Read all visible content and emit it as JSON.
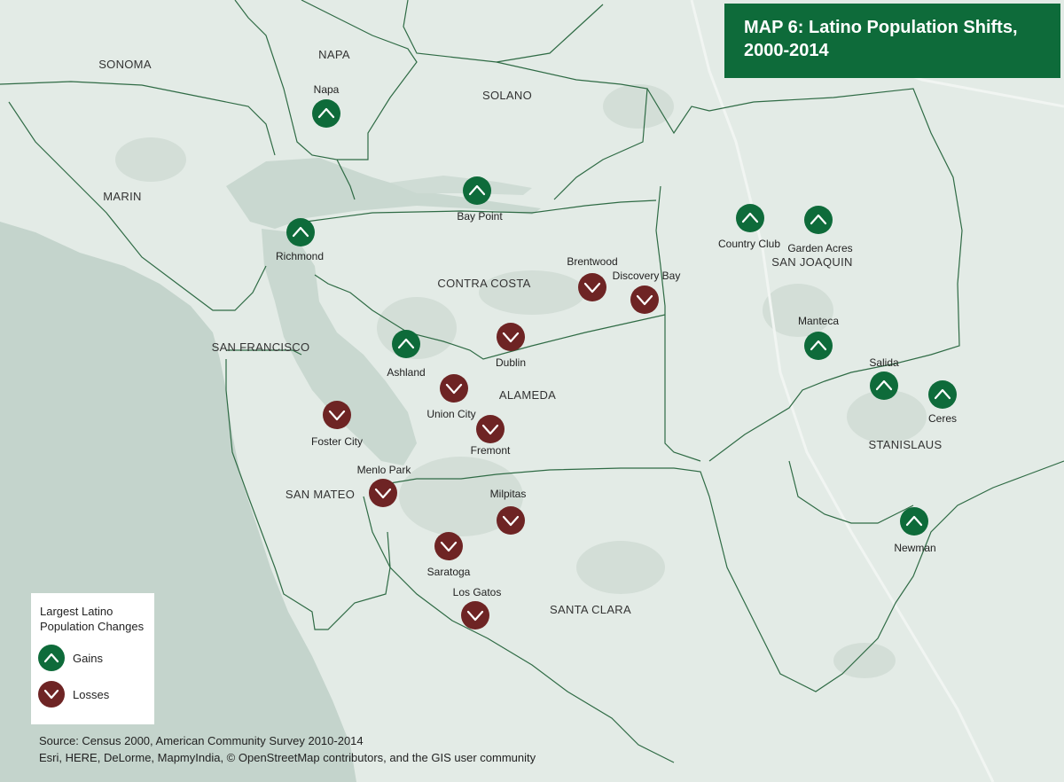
{
  "title": {
    "line1": "MAP 6: Latino Population Shifts,",
    "line2": "2000-2014"
  },
  "colors": {
    "gain": "#0e6b3a",
    "loss": "#6e2424",
    "water": "#c4d4cc",
    "land": "#e3ebe6",
    "boundary": "#2f6b45"
  },
  "counties": [
    {
      "name": "SONOMA"
    },
    {
      "name": "NAPA"
    },
    {
      "name": "SOLANO"
    },
    {
      "name": "MARIN"
    },
    {
      "name": "CONTRA COSTA"
    },
    {
      "name": "SAN JOAQUIN"
    },
    {
      "name": "SAN FRANCISCO"
    },
    {
      "name": "ALAMEDA"
    },
    {
      "name": "STANISLAUS"
    },
    {
      "name": "SAN MATEO"
    },
    {
      "name": "SANTA CLARA"
    }
  ],
  "places": [
    {
      "name": "Napa",
      "change": "gain"
    },
    {
      "name": "Bay Point",
      "change": "gain"
    },
    {
      "name": "Richmond",
      "change": "gain"
    },
    {
      "name": "Country Club",
      "change": "gain"
    },
    {
      "name": "Garden Acres",
      "change": "gain"
    },
    {
      "name": "Brentwood",
      "change": "loss"
    },
    {
      "name": "Discovery Bay",
      "change": "loss"
    },
    {
      "name": "Dublin",
      "change": "loss"
    },
    {
      "name": "Ashland",
      "change": "gain"
    },
    {
      "name": "Manteca",
      "change": "gain"
    },
    {
      "name": "Salida",
      "change": "gain"
    },
    {
      "name": "Ceres",
      "change": "gain"
    },
    {
      "name": "Union City",
      "change": "loss"
    },
    {
      "name": "Foster City",
      "change": "loss"
    },
    {
      "name": "Fremont",
      "change": "loss"
    },
    {
      "name": "Menlo Park",
      "change": "loss"
    },
    {
      "name": "Milpitas",
      "change": "loss"
    },
    {
      "name": "Newman",
      "change": "gain"
    },
    {
      "name": "Saratoga",
      "change": "loss"
    },
    {
      "name": "Los Gatos",
      "change": "loss"
    }
  ],
  "legend": {
    "heading_line1": "Largest Latino",
    "heading_line2": "Population Changes",
    "gains_label": "Gains",
    "losses_label": "Losses"
  },
  "source": {
    "line1": "Source: Census 2000, American Community Survey 2010-2014",
    "line2": "Esri, HERE, DeLorme, MapmyIndia, © OpenStreetMap contributors, and the GIS user community"
  }
}
